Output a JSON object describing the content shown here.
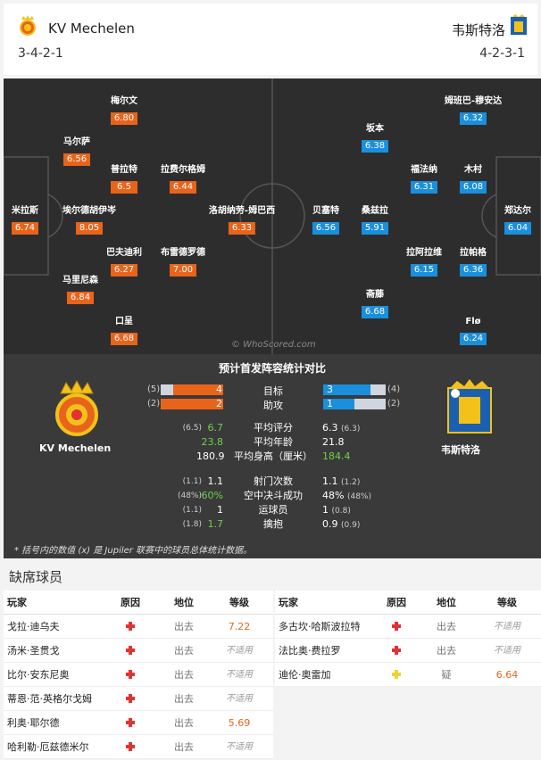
{
  "header": {
    "home_team": "KV Mechelen",
    "home_formation": "3-4-2-1",
    "away_team": "韦斯特洛",
    "away_formation": "4-2-3-1"
  },
  "pitch": {
    "watermark": "© WhoScored.com",
    "home_players": [
      {
        "name": "米拉斯",
        "rating": "6.74"
      },
      {
        "name": "马尔萨",
        "rating": "6.56"
      },
      {
        "name": "埃尔德胡伊岑",
        "rating": "8.05"
      },
      {
        "name": "马里尼森",
        "rating": "6.84"
      },
      {
        "name": "梅尔文",
        "rating": "6.80"
      },
      {
        "name": "普拉特",
        "rating": "6.5"
      },
      {
        "name": "巴夫迪利",
        "rating": "6.27"
      },
      {
        "name": "口呈",
        "rating": "6.68"
      },
      {
        "name": "拉费尔格姆",
        "rating": "6.44"
      },
      {
        "name": "布雷德罗德",
        "rating": "7.00"
      },
      {
        "name": "洛胡纳劳-姆巴西",
        "rating": "6.33"
      }
    ],
    "away_players": [
      {
        "name": "郑达尔",
        "rating": "6.04"
      },
      {
        "name": "姆班巴-穆安达",
        "rating": "6.32"
      },
      {
        "name": "木村",
        "rating": "6.08"
      },
      {
        "name": "拉帕格",
        "rating": "6.36"
      },
      {
        "name": "Flø",
        "rating": "6.24"
      },
      {
        "name": "福法纳",
        "rating": "6.31"
      },
      {
        "name": "拉阿拉维",
        "rating": "6.15"
      },
      {
        "name": "坂本",
        "rating": "6.38"
      },
      {
        "name": "桑兹拉",
        "rating": "5.91"
      },
      {
        "name": "斋藤",
        "rating": "6.68"
      },
      {
        "name": "贝塞特",
        "rating": "6.56"
      }
    ]
  },
  "stats": {
    "title": "预计首发阵容统计对比",
    "home_label": "KV Mechelen",
    "away_label": "韦斯特洛",
    "bars": [
      {
        "label": "目标",
        "home": "4",
        "home_par": "(5)",
        "home_frac": 0.8,
        "away": "3",
        "away_par": "(4)",
        "away_frac": 0.75
      },
      {
        "label": "助攻",
        "home": "2",
        "home_par": "(2)",
        "home_frac": 1.0,
        "away": "1",
        "away_par": "(2)",
        "away_frac": 0.5
      }
    ],
    "rows": [
      {
        "label": "平均评分",
        "home_par": "(6.5)",
        "home": "6.7",
        "home_green": true,
        "away": "6.3",
        "away_par": "(6.3)",
        "away_green": false
      },
      {
        "label": "平均年龄",
        "home_par": "",
        "home": "23.8",
        "home_green": true,
        "away": "21.8",
        "away_par": "",
        "away_green": false
      },
      {
        "label": "平均身高（厘米）",
        "home_par": "",
        "home": "180.9",
        "home_green": false,
        "away": "184.4",
        "away_par": "",
        "away_green": true
      },
      {
        "label": "射门次数",
        "home_par": "(1.1)",
        "home": "1.1",
        "home_green": false,
        "away": "1.1",
        "away_par": "(1.2)",
        "away_green": false
      },
      {
        "label": "空中决斗成功",
        "home_par": "(48%)",
        "home": "60%",
        "home_green": true,
        "away": "48%",
        "away_par": "(48%)",
        "away_green": false
      },
      {
        "label": "运球员",
        "home_par": "(1.1)",
        "home": "1",
        "home_green": false,
        "away": "1",
        "away_par": "(0.8)",
        "away_green": false
      },
      {
        "label": "擒抱",
        "home_par": "(1.8)",
        "home": "1.7",
        "home_green": true,
        "away": "0.9",
        "away_par": "(0.9)",
        "away_green": false
      }
    ],
    "footnote": "* 括号内的数值 (x) 是 Jupiler 联赛中的球员总体统计数据。"
  },
  "missing": {
    "title": "缺席球员",
    "headers": {
      "player": "玩家",
      "reason": "原因",
      "status": "地位",
      "rating": "等级"
    },
    "home": [
      {
        "name": "戈拉·迪乌夫",
        "reason": "injury",
        "status": "出去",
        "rating": "7.22"
      },
      {
        "name": "汤米·圣贯戈",
        "reason": "injury",
        "status": "出去",
        "rating": "不适用"
      },
      {
        "name": "比尔·安东尼奥",
        "reason": "injury",
        "status": "出去",
        "rating": "不适用"
      },
      {
        "name": "蒂恩·范·英格尔戈姆",
        "reason": "injury",
        "status": "出去",
        "rating": "不适用"
      },
      {
        "name": "利奥·耶尔德",
        "reason": "injury",
        "status": "出去",
        "rating": "5.69"
      },
      {
        "name": "哈利勒·厄兹德米尔",
        "reason": "injury",
        "status": "出去",
        "rating": "不适用"
      }
    ],
    "away": [
      {
        "name": "多古坎·哈斯波拉特",
        "reason": "injury",
        "status": "出去",
        "rating": "不适用"
      },
      {
        "name": "法比奥·费拉罗",
        "reason": "injury",
        "status": "出去",
        "rating": "不适用"
      },
      {
        "name": "迪伦·奥雷加",
        "reason": "doubt",
        "status": "疑",
        "rating": "6.64"
      }
    ]
  }
}
